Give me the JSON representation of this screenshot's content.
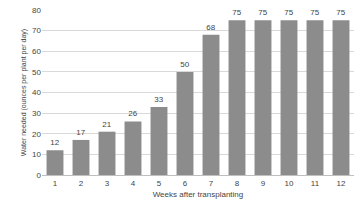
{
  "chart_data": {
    "type": "bar",
    "x_label": "Weeks after transplanting",
    "y_label": "Water needed (ounces per plant per day)",
    "categories": [
      "1",
      "2",
      "3",
      "4",
      "5",
      "6",
      "7",
      "8",
      "9",
      "10",
      "11",
      "12"
    ],
    "values": [
      12,
      17,
      21,
      26,
      33,
      50,
      68,
      75,
      75,
      75,
      75,
      75
    ],
    "color": "#8c8c8c",
    "ylim": [
      0,
      80
    ],
    "yticks": [
      0,
      10,
      20,
      30,
      40,
      50,
      60,
      70,
      80
    ],
    "grid": true,
    "data_labels": true
  }
}
